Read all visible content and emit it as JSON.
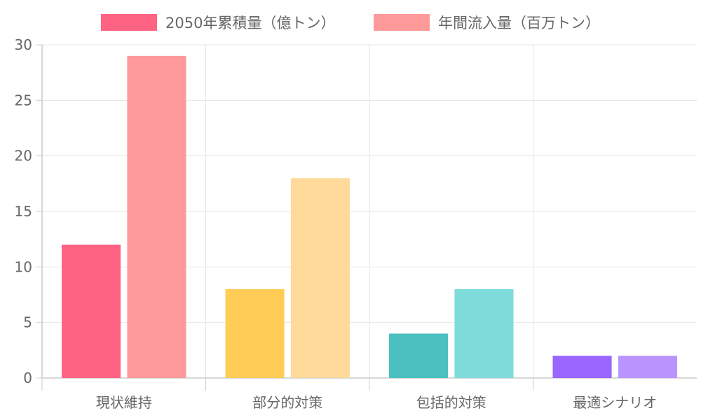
{
  "chart_data": {
    "type": "bar",
    "categories": [
      "現状維持",
      "部分的対策",
      "包括的対策",
      "最適シナリオ"
    ],
    "series": [
      {
        "name": "2050年累積量（億トン）",
        "values": [
          12,
          8,
          4,
          2
        ],
        "colors": [
          "#ff6384",
          "#ffcd56",
          "#4bc0c0",
          "#9966ff"
        ],
        "legend_color": "#ff6384"
      },
      {
        "name": "年間流入量（百万トン）",
        "values": [
          29,
          18,
          8,
          2
        ],
        "colors": [
          "#ff9a9a",
          "#ffda9a",
          "#7ddcd9",
          "#b994ff"
        ],
        "legend_color": "#ff9a9a"
      }
    ],
    "ylim": [
      0,
      30
    ],
    "yticks": [
      0,
      5,
      10,
      15,
      20,
      25,
      30
    ],
    "grid": true,
    "legend_position": "top"
  }
}
